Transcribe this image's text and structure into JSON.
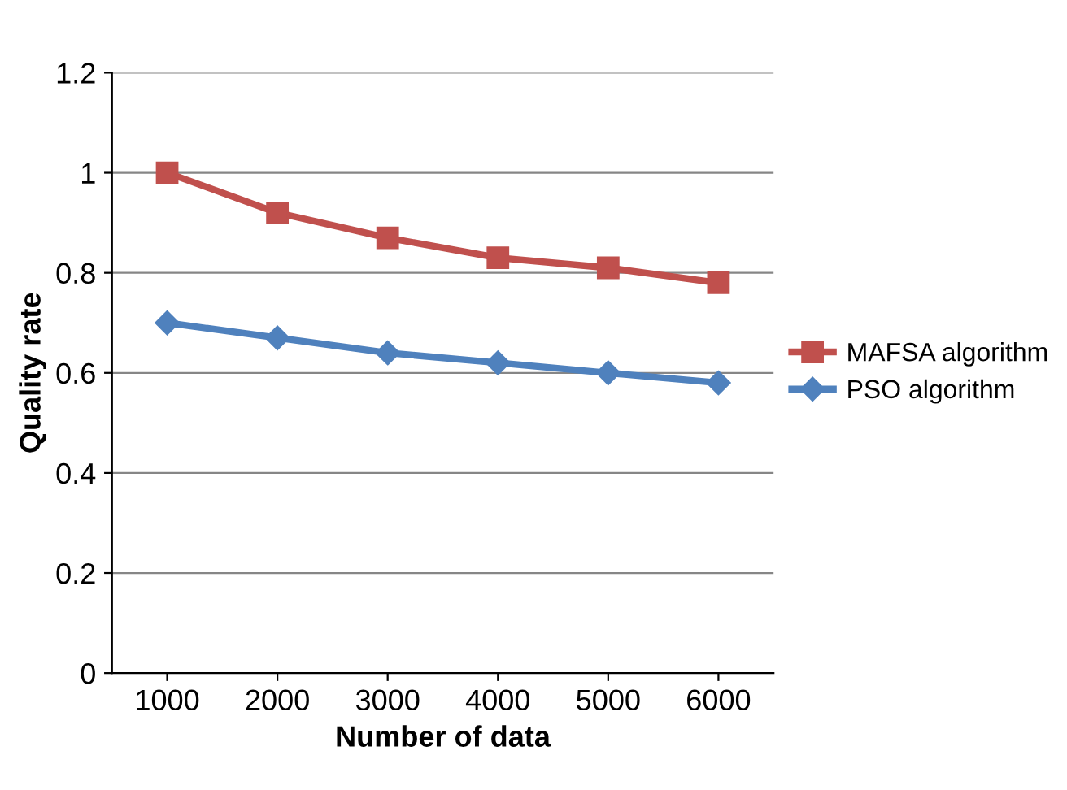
{
  "chart_data": {
    "type": "line",
    "xlabel": "Number of data",
    "ylabel": "Quality rate",
    "categories": [
      "1000",
      "2000",
      "3000",
      "4000",
      "5000",
      "6000"
    ],
    "series": [
      {
        "name": "MAFSA algorithm",
        "color": "#c0504d",
        "marker": "square",
        "values": [
          1.0,
          0.92,
          0.87,
          0.83,
          0.81,
          0.78
        ]
      },
      {
        "name": "PSO algorithm",
        "color": "#4f81bd",
        "marker": "diamond",
        "values": [
          0.7,
          0.67,
          0.64,
          0.62,
          0.6,
          0.58
        ]
      }
    ],
    "ylim": [
      0,
      1.2
    ],
    "yticks": [
      0,
      0.2,
      0.4,
      0.6,
      0.8,
      1,
      1.2
    ],
    "grid": "y",
    "legend": "right",
    "line_style": "solid"
  }
}
